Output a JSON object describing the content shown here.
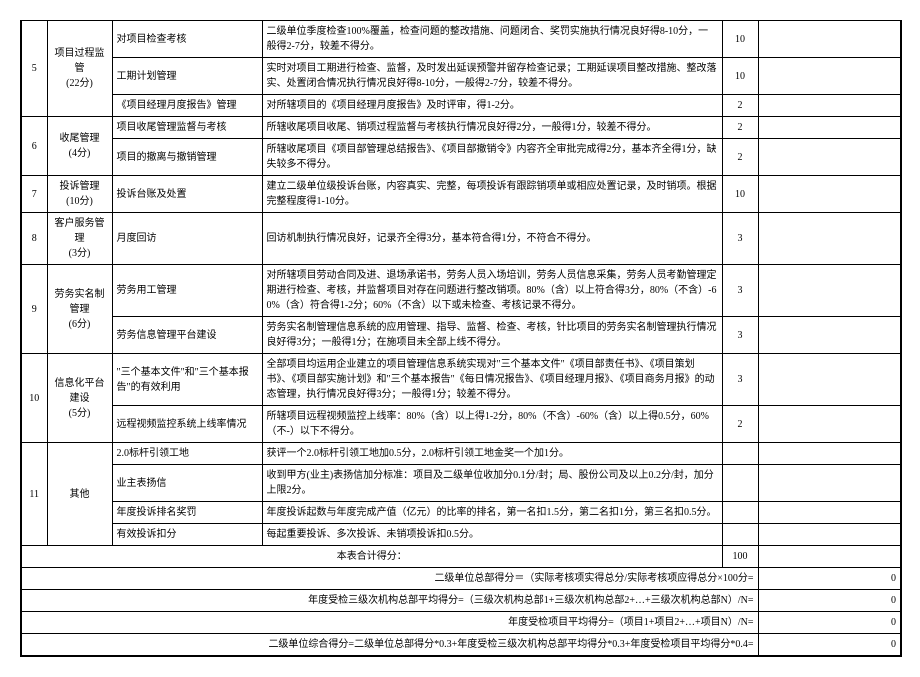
{
  "rows": [
    {
      "idx": "5",
      "idx_span": 3,
      "cat": "项目过程监管\n(22分)",
      "cat_span": 3,
      "sub": "对项目检查考核",
      "desc": "二级单位季度检查100%覆盖，检查问题的整改措施、问题闭合、奖罚实施执行情况良好得8-10分，一般得2-7分，较差不得分。",
      "score": "10"
    },
    {
      "sub": "工期计划管理",
      "desc": "实时对项目工期进行检查、监督，及时发出延误预警并留存检查记录；工期延误项目整改措施、整改落实、处置闭合情况执行情况良好得8-10分，一般得2-7分，较差不得分。",
      "score": "10"
    },
    {
      "sub": "《项目经理月度报告》管理",
      "desc": "对所辖项目的《项目经理月度报告》及时评审，得1-2分。",
      "score": "2"
    },
    {
      "idx": "6",
      "idx_span": 2,
      "cat": "收尾管理\n(4分)",
      "cat_span": 2,
      "sub": "项目收尾管理监督与考核",
      "desc": "所辖收尾项目收尾、销项过程监督与考核执行情况良好得2分，一般得1分，较差不得分。",
      "score": "2"
    },
    {
      "sub": "项目的撤离与撤销管理",
      "desc": "所辖收尾项目《项目部管理总结报告》、《项目部撤销令》内容齐全审批完成得2分，基本齐全得1分，缺失较多不得分。",
      "score": "2"
    },
    {
      "idx": "7",
      "idx_span": 1,
      "cat": "投诉管理\n(10分)",
      "cat_span": 1,
      "sub": "投诉台账及处置",
      "desc": "建立二级单位级投诉台账，内容真实、完整，每项投诉有跟踪销项单或相应处置记录，及时销项。根据完整程度得1-10分。",
      "score": "10"
    },
    {
      "idx": "8",
      "idx_span": 1,
      "cat": "客户服务管理\n(3分)",
      "cat_span": 1,
      "sub": "月度回访",
      "desc": "回访机制执行情况良好，记录齐全得3分，基本符合得1分，不符合不得分。",
      "score": "3"
    },
    {
      "idx": "9",
      "idx_span": 2,
      "cat": "劳务实名制管理\n(6分)",
      "cat_span": 2,
      "sub": "劳务用工管理",
      "desc": "对所辖项目劳动合同及进、退场承诺书，劳务人员入场培训，劳务人员信息采集，劳务人员考勤管理定期进行检查、考核，并监督项目对存在问题进行整改销项。80%（含）以上符合得3分，80%（不含）-60%（含）符合得1-2分；60%（不含）以下或未检查、考核记录不得分。",
      "score": "3"
    },
    {
      "sub": "劳务信息管理平台建设",
      "desc": "劳务实名制管理信息系统的应用管理、指导、监督、检查、考核，针比项目的劳务实名制管理执行情况良好得3分；一般得1分；在施项目未全部上线不得分。",
      "score": "3"
    },
    {
      "idx": "10",
      "idx_span": 2,
      "cat": "信息化平台建设\n(5分)",
      "cat_span": 2,
      "sub": "\"三个基本文件\"和\"三个基本报告\"的有效利用",
      "desc": "全部项目均运用企业建立的项目管理信息系统实现对\"三个基本文件\"《项目部责任书》、《项目策划书》、《项目部实施计划》和\"三个基本报告\"《每日情况报告》、《项目经理月报》、《项目商务月报》的动态管理，执行情况良好得3分；一般得1分；较差不得分。",
      "score": "3"
    },
    {
      "sub": "远程视频监控系统上线率情况",
      "desc": "所辖项目远程视频监控上线率：80%（含）以上得1-2分，80%（不含）-60%（含）以上得0.5分，60%（不-）以下不得分。",
      "score": "2"
    },
    {
      "idx": "11",
      "idx_span": 4,
      "cat": "其他",
      "cat_span": 4,
      "sub": "2.0标杆引领工地",
      "desc": "获评一个2.0标杆引领工地加0.5分，2.0标杆引领工地金奖一个加1分。",
      "score": ""
    },
    {
      "sub": "业主表扬信",
      "desc": "收到甲方(业主)表扬信加分标准：项目及二级单位收加分0.1分/封；局、股份公司及以上0.2分/封，加分上限2分。",
      "score": ""
    },
    {
      "sub": "年度投诉排名奖罚",
      "desc": "年度投诉起数与年度完成产值（亿元）的比率的排名，第一名扣1.5分，第二名扣1分，第三名扣0.5分。",
      "score": ""
    },
    {
      "sub": "有效投诉扣分",
      "desc": "每起重要投诉、多次投诉、未销项投诉扣0.5分。",
      "score": ""
    }
  ],
  "summary": {
    "total_label": "本表合计得分：",
    "total_score": "100",
    "line1": "二级单位总部得分＝（实际考核项实得总分/实际考核项应得总分×100分=",
    "line2": "年度受检三级次机构总部平均得分=（三级次机构总部1+三级次机构总部2+…+三级次机构总部N）/N=",
    "line3": "年度受检项目平均得分=（项目1+项目2+…+项目N）/N=",
    "line4": "二级单位综合得分=二级单位总部得分*0.3+年度受检三级次机构总部平均得分*0.3+年度受检项目平均得分*0.4=",
    "result_zero": "0"
  }
}
